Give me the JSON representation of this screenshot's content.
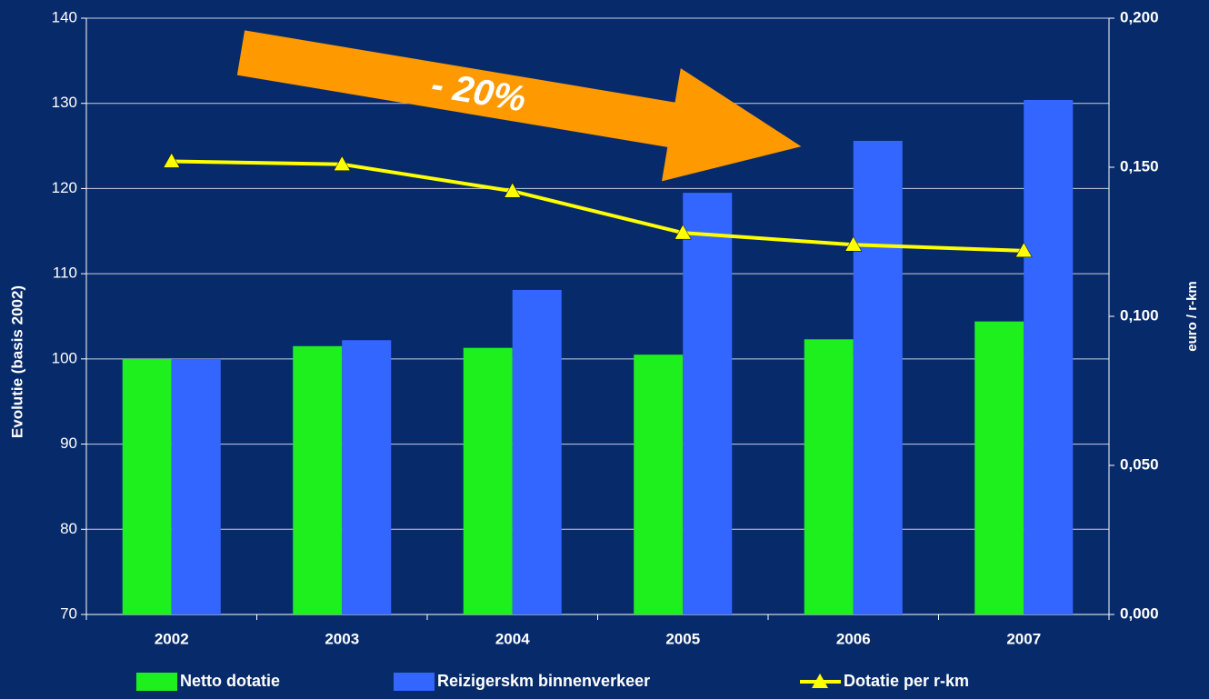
{
  "chart_data": {
    "type": "bar",
    "categories": [
      "2002",
      "2003",
      "2004",
      "2005",
      "2006",
      "2007"
    ],
    "series": [
      {
        "name": "Netto dotatie",
        "color": "#1ef01e",
        "values": [
          100,
          101.5,
          101.3,
          100.5,
          102.3,
          104.4
        ]
      },
      {
        "name": "Reizigerskm binnenverkeer",
        "color": "#3366ff",
        "values": [
          100,
          102.2,
          108.1,
          119.5,
          125.6,
          130.4
        ]
      },
      {
        "name": "Dotatie per r-km",
        "color": "#ffff00",
        "type": "line",
        "axis": "y2",
        "values": [
          0.152,
          0.151,
          0.142,
          0.128,
          0.124,
          0.122
        ]
      }
    ],
    "ylabel": "Evolutie (basis 2002)",
    "y2label": "euro / r-km",
    "annotation": "- 20%",
    "ylim": [
      70,
      140
    ],
    "yticks": [
      70,
      80,
      90,
      100,
      110,
      120,
      130,
      140
    ],
    "y2lim": [
      0,
      0.2
    ],
    "y2ticks": [
      {
        "value": 0,
        "label": "0,000"
      },
      {
        "value": 0.05,
        "label": "0,050"
      },
      {
        "value": 0.1,
        "label": "0,100"
      },
      {
        "value": 0.15,
        "label": "0,150"
      },
      {
        "value": 0.2,
        "label": "0,200"
      }
    ],
    "grid": true,
    "legend": "bottom"
  }
}
